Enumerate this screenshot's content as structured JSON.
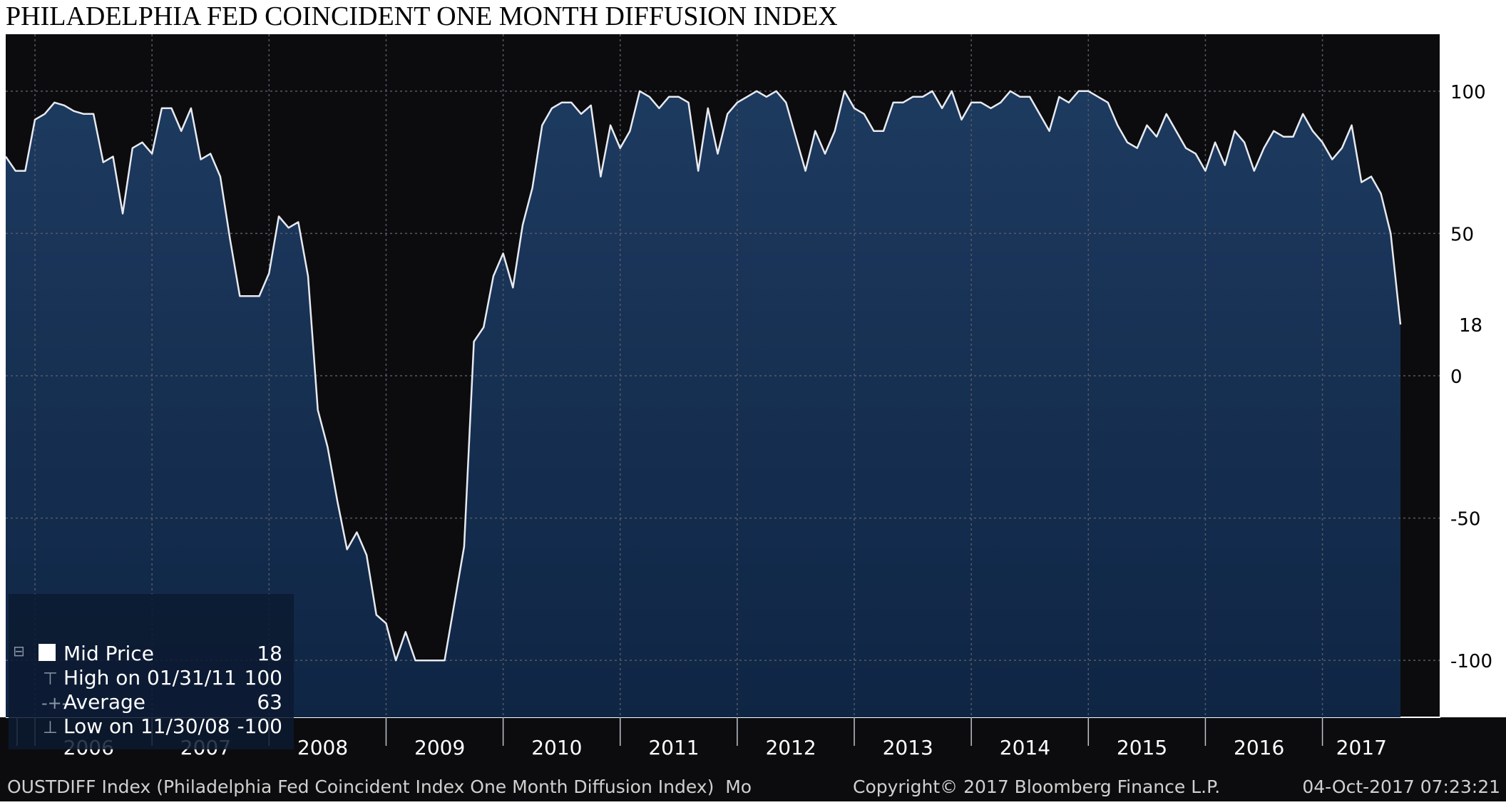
{
  "title": "PHILADELPHIA FED COINCIDENT ONE MONTH DIFFUSION INDEX",
  "colors": {
    "panel_bg": "#0c0c0e",
    "area_top": "#1d3a5f",
    "area_bottom": "#0f2544",
    "line": "#e8eaf0",
    "grid": "#555a66",
    "axis_text": "#ffffff",
    "footer_text": "#d0d0d0"
  },
  "legend": {
    "mid_label": "Mid Price",
    "mid_value": "18",
    "high_label": "High on 01/31/11",
    "high_value": "100",
    "avg_label": "Average",
    "avg_value": "63",
    "low_label": "Low on 11/30/08",
    "low_value": "-100"
  },
  "last_value_label": "18",
  "footer": {
    "left": "OUSTDIFF Index (Philadelphia Fed Coincident Index One Month Diffusion Index)  Mo",
    "center": "Copyright© 2017 Bloomberg Finance L.P.",
    "right": "04-Oct-2017 07:23:21"
  },
  "chart_data": {
    "type": "area",
    "title": "PHILADELPHIA FED COINCIDENT ONE MONTH DIFFUSION INDEX",
    "xlabel": "",
    "ylabel": "",
    "ylim": [
      -120,
      120
    ],
    "yticks": [
      100,
      50,
      0,
      -50,
      -100
    ],
    "xticks": [
      "2006",
      "2007",
      "2008",
      "2009",
      "2010",
      "2011",
      "2012",
      "2013",
      "2014",
      "2015",
      "2016",
      "2017"
    ],
    "x_start": "2005-10",
    "frequency": "monthly",
    "grid": true,
    "legend_position": "bottom-left",
    "series": [
      {
        "name": "Mid Price",
        "values": [
          77,
          72,
          72,
          90,
          92,
          96,
          95,
          93,
          92,
          92,
          75,
          77,
          57,
          80,
          82,
          78,
          94,
          94,
          86,
          94,
          76,
          78,
          70,
          48,
          28,
          28,
          28,
          36,
          56,
          52,
          54,
          35,
          -12,
          -25,
          -44,
          -61,
          -55,
          -63,
          -84,
          -87,
          -100,
          -90,
          -100,
          -100,
          -100,
          -100,
          -80,
          -60,
          12,
          17,
          35,
          43,
          31,
          53,
          66,
          88,
          94,
          96,
          96,
          92,
          95,
          70,
          88,
          80,
          86,
          100,
          98,
          94,
          98,
          98,
          96,
          72,
          94,
          78,
          92,
          96,
          98,
          100,
          98,
          100,
          96,
          84,
          72,
          86,
          78,
          86,
          100,
          94,
          92,
          86,
          86,
          96,
          96,
          98,
          98,
          100,
          94,
          100,
          90,
          96,
          96,
          94,
          96,
          100,
          98,
          98,
          92,
          86,
          98,
          96,
          100,
          100,
          98,
          96,
          88,
          82,
          80,
          88,
          84,
          92,
          86,
          80,
          78,
          72,
          82,
          74,
          86,
          82,
          72,
          80,
          86,
          84,
          84,
          92,
          86,
          82,
          76,
          80,
          88,
          68,
          70,
          64,
          50,
          18
        ]
      }
    ]
  }
}
